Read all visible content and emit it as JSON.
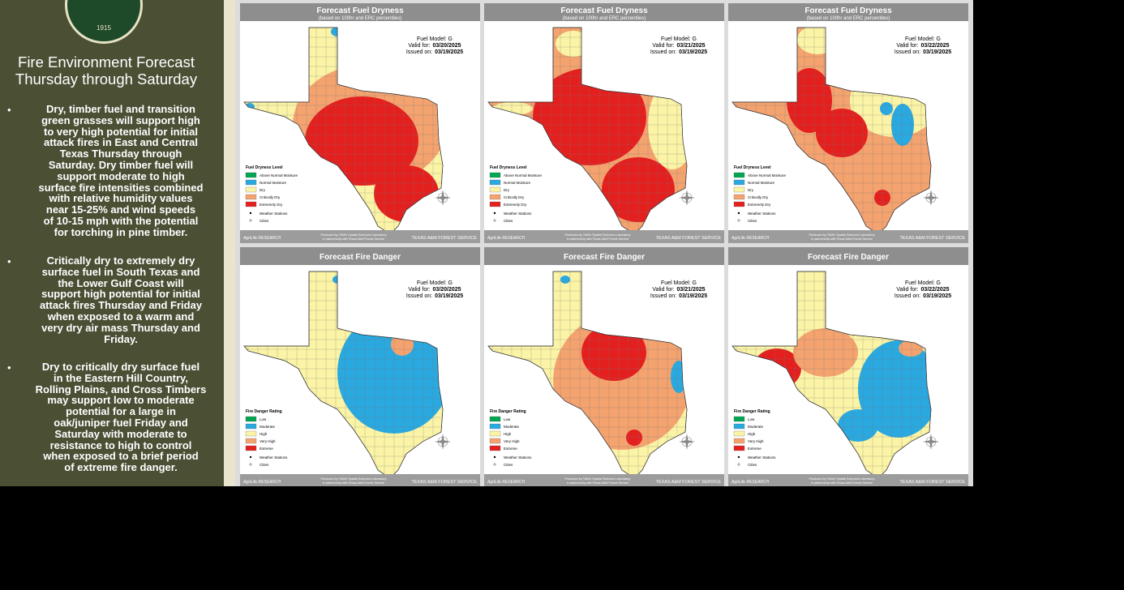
{
  "sidebar": {
    "seal_year": "1915",
    "title": [
      "Fire Environment Forecast",
      "Thursday through Saturday"
    ],
    "bullets": [
      [
        "Dry, timber fuel and transition",
        "green grasses will support high",
        "to very high potential for initial",
        "attack fires in East and Central",
        "Texas Thursday through",
        "Saturday. Dry timber fuel will",
        "support moderate to high",
        "surface fire intensities combined",
        "with relative humidity values",
        "near 15-25% and wind speeds",
        "of 10-15 mph with the potential",
        "for torching in pine timber."
      ],
      [
        "Critically dry to extremely dry",
        "surface fuel in South Texas and",
        "the Lower Gulf Coast will",
        "support high potential for initial",
        "attack fires Thursday and Friday",
        "when exposed to a warm and",
        "very dry air mass Thursday and",
        "Friday."
      ],
      [
        "Dry to critically dry surface fuel",
        "in the Eastern Hill Country,",
        "Rolling Plains, and Cross Timbers",
        "may support low to moderate",
        "potential for a large in",
        "oak/juniper fuel Friday and",
        "Saturday with moderate to",
        "resistance to high to control",
        "when exposed to a brief period",
        "of extreme fire danger."
      ]
    ]
  },
  "labels": {
    "fuel_model": "Fuel Model: G",
    "valid": "Valid for:",
    "issued": "Issued on:",
    "stations": "Weather Stations",
    "cities": "Cities"
  },
  "footer": {
    "agrilife": "AgriLife RESEARCH",
    "credit": [
      "Produced by TAMU Spatial Sciences Laboratory",
      "in partnership with Texas A&M Forest Service"
    ],
    "forest": "TEXAS A&M FOREST SERVICE"
  },
  "rows": [
    {
      "title": "Forecast Fuel Dryness",
      "subtitle": "(based on 100hr and ERC percentiles)",
      "legend_title": "Fuel Dryness Level",
      "legend": [
        {
          "label": "Above Normal Moisture",
          "color": "#00a651"
        },
        {
          "label": "Normal Moisture",
          "color": "#2aa9e0"
        },
        {
          "label": "Dry",
          "color": "#fbf4a6"
        },
        {
          "label": "Critically Dry",
          "color": "#f4a36f"
        },
        {
          "label": "Extremely Dry",
          "color": "#e4201f"
        }
      ],
      "panels": [
        {
          "valid": "03/20/2025",
          "issued": "03/19/2025"
        },
        {
          "valid": "03/21/2025",
          "issued": "03/19/2025"
        },
        {
          "valid": "03/22/2025",
          "issued": "03/19/2025"
        }
      ]
    },
    {
      "title": "Forecast Fire Danger",
      "legend_title": "Fire Danger Rating",
      "legend": [
        {
          "label": "Low",
          "color": "#00a651"
        },
        {
          "label": "Moderate",
          "color": "#2aa9e0"
        },
        {
          "label": "High",
          "color": "#fbf4a6"
        },
        {
          "label": "Very High",
          "color": "#f4a36f"
        },
        {
          "label": "Extreme",
          "color": "#e4201f"
        }
      ],
      "panels": [
        {
          "valid": "03/20/2025",
          "issued": "03/19/2025"
        },
        {
          "valid": "03/21/2025",
          "issued": "03/19/2025"
        },
        {
          "valid": "03/22/2025",
          "issued": "03/19/2025"
        }
      ]
    }
  ]
}
